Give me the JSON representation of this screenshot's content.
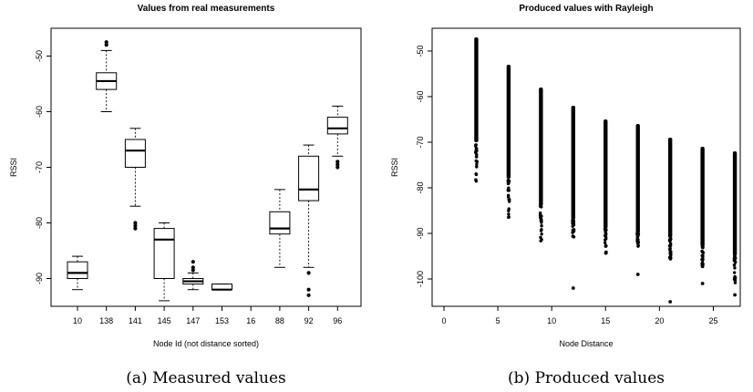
{
  "chart_data": [
    {
      "type": "boxplot",
      "title": "Values from real measurements",
      "xlabel": "Node Id (not distance sorted)",
      "ylabel": "RSSI",
      "ylim": [
        -95,
        -45
      ],
      "yticks": [
        -90,
        -80,
        -70,
        -60,
        -50
      ],
      "categories": [
        "10",
        "138",
        "141",
        "145",
        "147",
        "153",
        "16",
        "88",
        "92",
        "96"
      ],
      "boxes": [
        {
          "category": "10",
          "whisker_low": -92,
          "q1": -90,
          "median": -89,
          "q3": -87,
          "whisker_high": -86,
          "outliers": []
        },
        {
          "category": "138",
          "whisker_low": -60,
          "q1": -56,
          "median": -54.5,
          "q3": -53,
          "whisker_high": -49,
          "outliers": [
            -48,
            -47.5
          ]
        },
        {
          "category": "141",
          "whisker_low": -77,
          "q1": -70,
          "median": -67,
          "q3": -65,
          "whisker_high": -63,
          "outliers": [
            -80,
            -80.5,
            -81
          ]
        },
        {
          "category": "145",
          "whisker_low": -94,
          "q1": -90,
          "median": -83,
          "q3": -81,
          "whisker_high": -80,
          "outliers": []
        },
        {
          "category": "147",
          "whisker_low": -92,
          "q1": -91,
          "median": -90.5,
          "q3": -90,
          "whisker_high": -89,
          "outliers": [
            -87,
            -88,
            -88.5
          ]
        },
        {
          "category": "153",
          "whisker_low": -92,
          "q1": -92,
          "median": -92,
          "q3": -91,
          "whisker_high": -91,
          "outliers": []
        },
        {
          "category": "16",
          "whisker_low": null,
          "q1": null,
          "median": null,
          "q3": null,
          "whisker_high": null,
          "outliers": []
        },
        {
          "category": "88",
          "whisker_low": -88,
          "q1": -82,
          "median": -81,
          "q3": -78,
          "whisker_high": -74,
          "outliers": []
        },
        {
          "category": "92",
          "whisker_low": -88,
          "q1": -76,
          "median": -74,
          "q3": -68,
          "whisker_high": -66,
          "outliers": [
            -89,
            -92,
            -93
          ]
        },
        {
          "category": "96",
          "whisker_low": -68,
          "q1": -64,
          "median": -63,
          "q3": -61,
          "whisker_high": -59,
          "outliers": [
            -69,
            -69.5,
            -70
          ]
        }
      ],
      "caption": "(a) Measured values"
    },
    {
      "type": "scatter",
      "title": "Produced values with Rayleigh",
      "xlabel": "Node Distance",
      "ylabel": "RSSI",
      "xlim": [
        0,
        27.5
      ],
      "ylim": [
        -106,
        -45
      ],
      "xticks": [
        0,
        5,
        10,
        15,
        20,
        25
      ],
      "yticks": [
        -100,
        -90,
        -80,
        -70,
        -60,
        -50
      ],
      "columns": [
        {
          "x": 3,
          "y_max": -47,
          "y_dense_min": -70,
          "y_min": -79
        },
        {
          "x": 6,
          "y_max": -53,
          "y_dense_min": -78,
          "y_min": -87
        },
        {
          "x": 9,
          "y_max": -58,
          "y_dense_min": -84,
          "y_min": -92
        },
        {
          "x": 12,
          "y_max": -62,
          "y_dense_min": -87,
          "y_min": -91,
          "outlier": -102
        },
        {
          "x": 15,
          "y_max": -65,
          "y_dense_min": -89,
          "y_min": -95
        },
        {
          "x": 18,
          "y_max": -66,
          "y_dense_min": -90,
          "y_min": -93,
          "outlier": -99
        },
        {
          "x": 21,
          "y_max": -69,
          "y_dense_min": -91,
          "y_min": -96,
          "outlier": -105
        },
        {
          "x": 24,
          "y_max": -71,
          "y_dense_min": -93,
          "y_min": -98,
          "outlier": -101
        },
        {
          "x": 27,
          "y_max": -72,
          "y_dense_min": -95,
          "y_min": -101,
          "outlier": -103.5
        }
      ],
      "caption": "(b) Produced values"
    }
  ]
}
